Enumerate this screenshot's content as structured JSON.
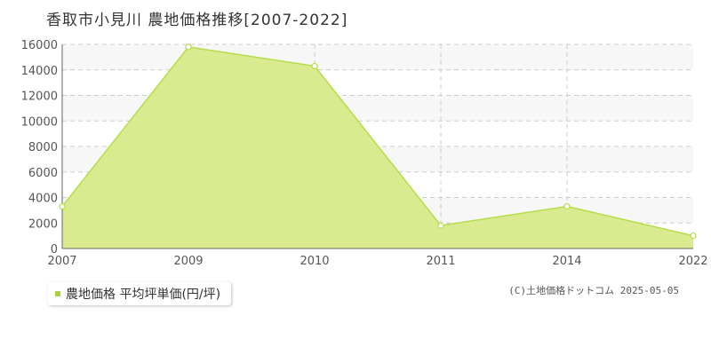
{
  "chart_title": "香取市小見川 農地価格推移[2007-2022]",
  "legend_label": "農地価格 平均坪単価(円/坪)",
  "copyright": "(C)土地価格ドットコム 2025-05-05",
  "colors": {
    "fill": "#d9eb8e",
    "line": "#b5dd4a",
    "grid": "#cccccc",
    "band": "#f7f7f7",
    "marker_fill": "#ffffff",
    "legend_swatch": "#aad23c"
  },
  "chart_data": {
    "type": "area",
    "title": "香取市小見川 農地価格推移[2007-2022]",
    "x": [
      "2007",
      "2009",
      "2010",
      "2011",
      "2014",
      "2022"
    ],
    "series": [
      {
        "name": "農地価格 平均坪単価(円/坪)",
        "values": [
          3300,
          15800,
          14300,
          1800,
          3300,
          1000
        ]
      }
    ],
    "ylim": [
      0,
      16000
    ],
    "yticks": [
      0,
      2000,
      4000,
      6000,
      8000,
      10000,
      12000,
      14000,
      16000
    ],
    "grid": true,
    "legend_position": "bottom-left"
  }
}
